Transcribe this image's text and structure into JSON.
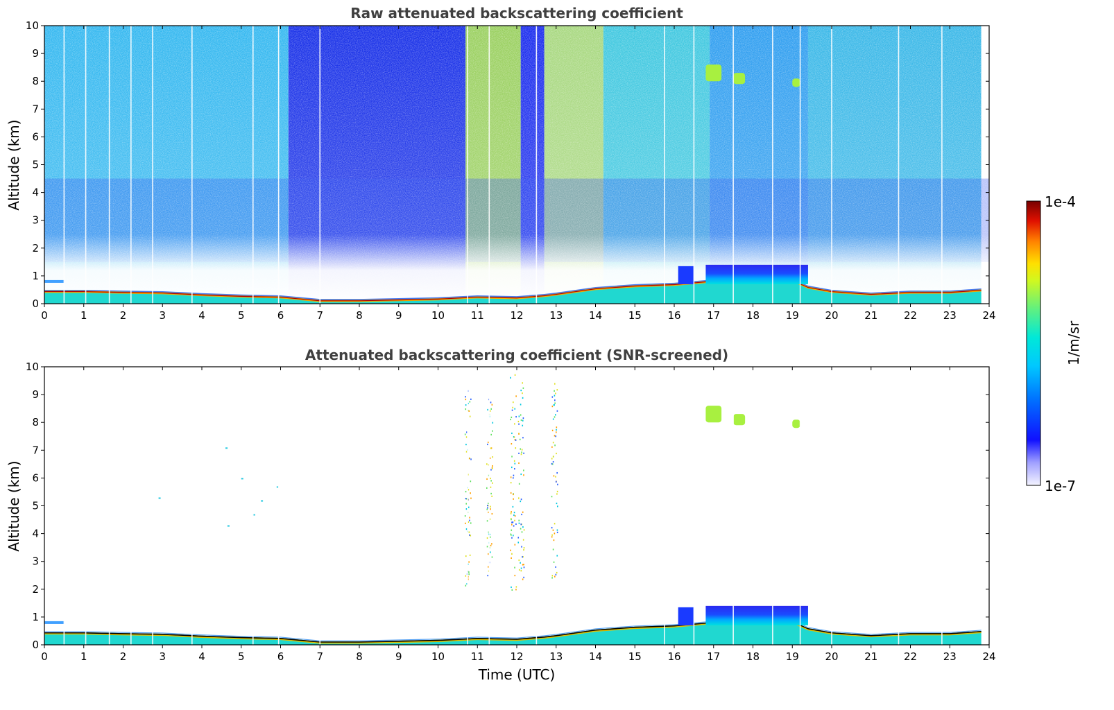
{
  "chart_data": [
    {
      "type": "heatmap",
      "title": "Raw attenuated backscattering coefficient",
      "xlabel": "",
      "ylabel": "Altitude (km)",
      "xlim": [
        0,
        24
      ],
      "ylim": [
        0,
        10
      ],
      "xticks": [
        "0",
        "1",
        "2",
        "3",
        "4",
        "5",
        "6",
        "7",
        "8",
        "9",
        "10",
        "11",
        "12",
        "13",
        "14",
        "15",
        "16",
        "17",
        "18",
        "19",
        "20",
        "21",
        "22",
        "23",
        "24"
      ],
      "yticks": [
        "0",
        "1",
        "2",
        "3",
        "4",
        "5",
        "6",
        "7",
        "8",
        "9",
        "10"
      ],
      "boundary_layer_top_km": [
        [
          0,
          0.45
        ],
        [
          1,
          0.45
        ],
        [
          2,
          0.42
        ],
        [
          3,
          0.4
        ],
        [
          4,
          0.33
        ],
        [
          5,
          0.28
        ],
        [
          6,
          0.25
        ],
        [
          7,
          0.12
        ],
        [
          8,
          0.12
        ],
        [
          9,
          0.15
        ],
        [
          10,
          0.18
        ],
        [
          11,
          0.25
        ],
        [
          12,
          0.22
        ],
        [
          12.7,
          0.3
        ],
        [
          13,
          0.35
        ],
        [
          14,
          0.55
        ],
        [
          15,
          0.65
        ],
        [
          16,
          0.7
        ],
        [
          16.8,
          0.8
        ],
        [
          17,
          0.85
        ],
        [
          18,
          0.85
        ],
        [
          19,
          0.85
        ],
        [
          19.4,
          0.6
        ],
        [
          20,
          0.45
        ],
        [
          21,
          0.35
        ],
        [
          22,
          0.42
        ],
        [
          23,
          0.42
        ],
        [
          23.8,
          0.5
        ]
      ],
      "features": [
        {
          "name": "low cloud",
          "t_start": 16.8,
          "t_end": 19.4,
          "base_km": 0.7,
          "top_km": 1.4
        },
        {
          "name": "small cloud",
          "t_start": 16.1,
          "t_end": 16.5,
          "base_km": 0.7,
          "top_km": 1.35
        },
        {
          "name": "cirrus patch",
          "t_start": 16.8,
          "t_end": 17.2,
          "base_km": 8.0,
          "top_km": 8.6
        },
        {
          "name": "cirrus patch",
          "t_start": 17.5,
          "t_end": 17.8,
          "base_km": 7.9,
          "top_km": 8.3
        },
        {
          "name": "cirrus patch",
          "t_start": 19.0,
          "t_end": 19.2,
          "base_km": 7.8,
          "top_km": 8.1
        },
        {
          "name": "elevated layer",
          "t_start": 0.0,
          "t_end": 0.5,
          "base_km": 0.75,
          "top_km": 0.85
        }
      ]
    },
    {
      "type": "heatmap",
      "title": "Attenuated backscattering coefficient (SNR-screened)",
      "xlabel": "Time (UTC)",
      "ylabel": "Altitude (km)",
      "xlim": [
        0,
        24
      ],
      "ylim": [
        0,
        10
      ],
      "xticks": [
        "0",
        "1",
        "2",
        "3",
        "4",
        "5",
        "6",
        "7",
        "8",
        "9",
        "10",
        "11",
        "12",
        "13",
        "14",
        "15",
        "16",
        "17",
        "18",
        "19",
        "20",
        "21",
        "22",
        "23",
        "24"
      ],
      "yticks": [
        "0",
        "1",
        "2",
        "3",
        "4",
        "5",
        "6",
        "7",
        "8",
        "9",
        "10"
      ]
    }
  ],
  "colorbar": {
    "label": "1/m/sr",
    "min_label": "1e-7",
    "max_label": "1e-4",
    "colors": [
      "#e8e8ff",
      "#9d9dff",
      "#2020ff",
      "#0066ff",
      "#00b4ff",
      "#00e6e6",
      "#33e0a0",
      "#a0f040",
      "#ffff00",
      "#ffb000",
      "#ff4000",
      "#cc0000",
      "#7a0000"
    ]
  }
}
